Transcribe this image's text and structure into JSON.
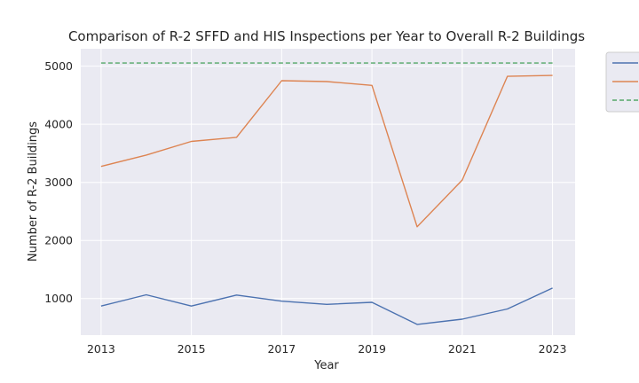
{
  "chart_data": {
    "type": "line",
    "title": "Comparison of R-2 SFFD and HIS Inspections per Year to Overall R-2 Buildings",
    "xlabel": "Year",
    "ylabel": "Number of R-2 Buildings",
    "x": [
      2013,
      2014,
      2015,
      2016,
      2017,
      2018,
      2019,
      2020,
      2021,
      2022,
      2023
    ],
    "xticks": [
      "2013",
      "2015",
      "2017",
      "2019",
      "2021",
      "2023"
    ],
    "yticks": [
      "1000",
      "2000",
      "3000",
      "4000",
      "5000"
    ],
    "xlim": [
      2012.55,
      2023.5
    ],
    "ylim": [
      370,
      5300
    ],
    "grid": true,
    "legend_position": "outside-right (clipped)",
    "series": [
      {
        "color": "#4c72b0",
        "dash": false,
        "values": [
          870,
          1065,
          870,
          1060,
          955,
          900,
          935,
          555,
          645,
          820,
          1180
        ]
      },
      {
        "color": "#dd8452",
        "dash": false,
        "values": [
          3275,
          3470,
          3705,
          3775,
          4750,
          4735,
          4670,
          2235,
          3040,
          4825,
          4840
        ]
      },
      {
        "color": "#55a868",
        "dash": true,
        "values": [
          5055,
          5055,
          5055,
          5055,
          5055,
          5055,
          5055,
          5055,
          5055,
          5055,
          5055
        ]
      }
    ]
  },
  "style": {
    "plot_bg": "#eaeaf2",
    "grid": "#ffffff",
    "text": "#262626"
  }
}
